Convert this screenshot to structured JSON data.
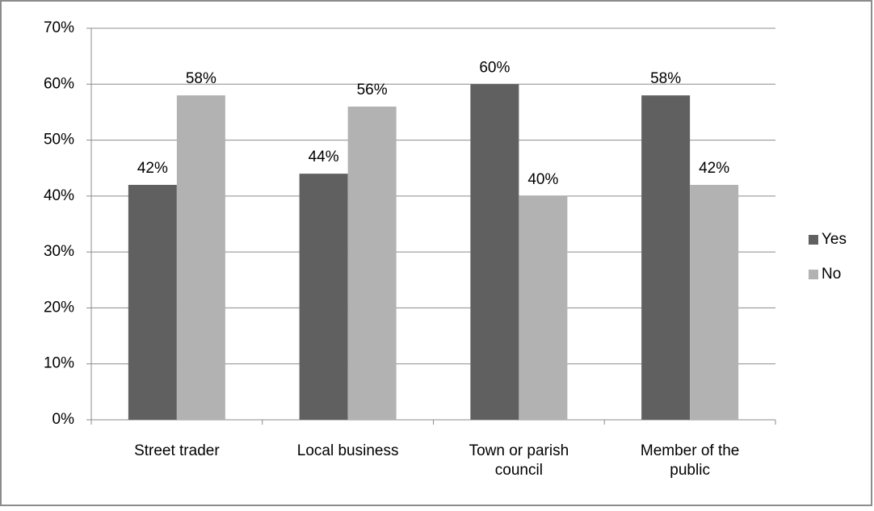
{
  "chart_data": {
    "type": "bar",
    "categories": [
      "Street trader",
      "Local business",
      "Town or parish\ncouncil",
      "Member of the\npublic"
    ],
    "series": [
      {
        "name": "Yes",
        "color": "#606060",
        "values": [
          42,
          44,
          60,
          58
        ],
        "value_labels": [
          "42%",
          "44%",
          "60%",
          "58%"
        ]
      },
      {
        "name": "No",
        "color": "#b2b2b2",
        "values": [
          58,
          56,
          40,
          42
        ],
        "value_labels": [
          "58%",
          "56%",
          "40%",
          "42%"
        ]
      }
    ],
    "ylim": [
      0,
      70
    ],
    "yticks": [
      {
        "value": 0,
        "label": "0%"
      },
      {
        "value": 10,
        "label": "10%"
      },
      {
        "value": 20,
        "label": "20%"
      },
      {
        "value": 30,
        "label": "30%"
      },
      {
        "value": 40,
        "label": "40%"
      },
      {
        "value": 50,
        "label": "50%"
      },
      {
        "value": 60,
        "label": "60%"
      },
      {
        "value": 70,
        "label": "70%"
      }
    ],
    "grid": true,
    "legend": "right"
  }
}
